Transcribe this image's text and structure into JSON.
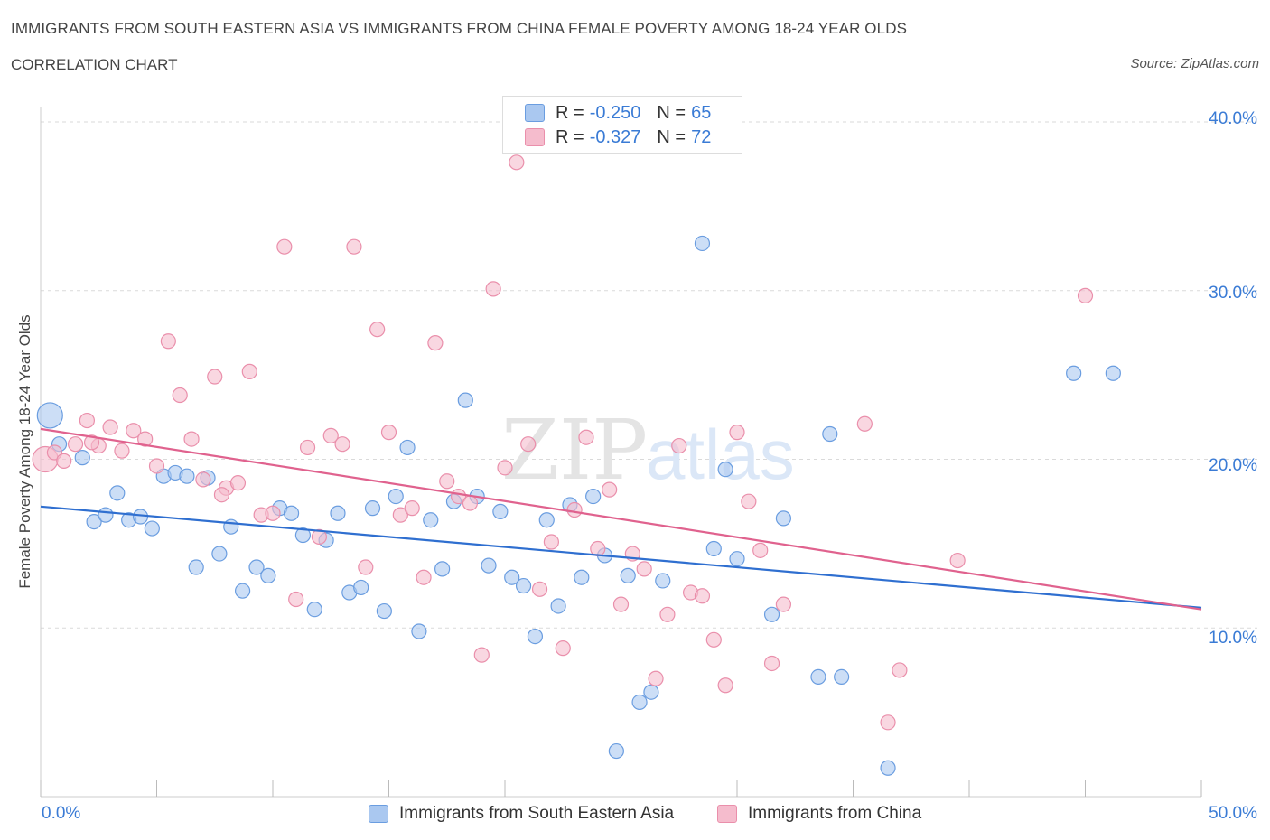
{
  "header": {
    "title": "IMMIGRANTS FROM SOUTH EASTERN ASIA VS IMMIGRANTS FROM CHINA FEMALE POVERTY AMONG 18-24 YEAR OLDS",
    "subtitle": "CORRELATION CHART",
    "source": "Source: ZipAtlas.com"
  },
  "watermark": {
    "part1": "ZIP",
    "part2": "atlas"
  },
  "stats": {
    "row1": {
      "r_label": "R =",
      "r_value": "-0.250",
      "n_label": "N =",
      "n_value": "65"
    },
    "row2": {
      "r_label": "R =",
      "r_value": "-0.327",
      "n_label": "N =",
      "n_value": "72"
    }
  },
  "legend": {
    "item1": "Immigrants from South Eastern Asia",
    "item2": "Immigrants from China"
  },
  "axis_labels": {
    "y": "Female Poverty Among 18-24 Year Olds",
    "x_min": "0.0%",
    "x_max": "50.0%",
    "y_ticks": [
      "40.0%",
      "30.0%",
      "20.0%",
      "10.0%"
    ]
  },
  "colors": {
    "blue_fill": "#aac8f0",
    "blue_stroke": "#6a9de0",
    "blue_line": "#2f6fd0",
    "pink_fill": "#f5bccd",
    "pink_stroke": "#ea8fab",
    "pink_line": "#e0628e",
    "tick_text": "#3a7bd5"
  },
  "chart_data": {
    "type": "scatter",
    "xlabel": "",
    "ylabel": "Female Poverty Among 18-24 Year Olds",
    "xlim": [
      0,
      50
    ],
    "ylim": [
      0,
      40
    ],
    "y_ticks": [
      10,
      20,
      30,
      40
    ],
    "grid": "horizontal dashed",
    "legend_placement": "bottom",
    "series": [
      {
        "name": "Immigrants from South Eastern Asia",
        "color": "#6a9de0",
        "trend": {
          "x": [
            0,
            50
          ],
          "y": [
            17.2,
            11.2
          ]
        },
        "points": [
          [
            0.4,
            22.6
          ],
          [
            0.8,
            20.9
          ],
          [
            1.8,
            20.1
          ],
          [
            2.3,
            16.3
          ],
          [
            2.8,
            16.7
          ],
          [
            3.3,
            18.0
          ],
          [
            3.8,
            16.4
          ],
          [
            4.3,
            16.6
          ],
          [
            4.8,
            15.9
          ],
          [
            5.3,
            19.0
          ],
          [
            5.8,
            19.2
          ],
          [
            6.3,
            19.0
          ],
          [
            6.7,
            13.6
          ],
          [
            7.2,
            18.9
          ],
          [
            7.7,
            14.4
          ],
          [
            8.2,
            16.0
          ],
          [
            8.7,
            12.2
          ],
          [
            9.3,
            13.6
          ],
          [
            9.8,
            13.1
          ],
          [
            10.3,
            17.1
          ],
          [
            10.8,
            16.8
          ],
          [
            11.3,
            15.5
          ],
          [
            11.8,
            11.1
          ],
          [
            12.3,
            15.2
          ],
          [
            12.8,
            16.8
          ],
          [
            13.3,
            12.1
          ],
          [
            13.8,
            12.4
          ],
          [
            14.3,
            17.1
          ],
          [
            14.8,
            11.0
          ],
          [
            15.3,
            17.8
          ],
          [
            15.8,
            20.7
          ],
          [
            16.3,
            9.8
          ],
          [
            16.8,
            16.4
          ],
          [
            17.3,
            13.5
          ],
          [
            17.8,
            17.5
          ],
          [
            18.3,
            23.5
          ],
          [
            18.8,
            17.8
          ],
          [
            19.3,
            13.7
          ],
          [
            19.8,
            16.9
          ],
          [
            20.3,
            13.0
          ],
          [
            20.8,
            12.5
          ],
          [
            21.3,
            9.5
          ],
          [
            21.8,
            16.4
          ],
          [
            22.3,
            11.3
          ],
          [
            22.8,
            17.3
          ],
          [
            23.3,
            13.0
          ],
          [
            23.8,
            17.8
          ],
          [
            24.3,
            14.3
          ],
          [
            24.8,
            2.7
          ],
          [
            25.3,
            13.1
          ],
          [
            25.8,
            5.6
          ],
          [
            26.3,
            6.2
          ],
          [
            26.8,
            12.8
          ],
          [
            28.5,
            32.8
          ],
          [
            29.0,
            14.7
          ],
          [
            29.5,
            19.4
          ],
          [
            30.0,
            14.1
          ],
          [
            31.5,
            10.8
          ],
          [
            32.0,
            16.5
          ],
          [
            33.5,
            7.1
          ],
          [
            34.0,
            21.5
          ],
          [
            34.5,
            7.1
          ],
          [
            36.5,
            1.7
          ],
          [
            44.5,
            25.1
          ],
          [
            46.2,
            25.1
          ]
        ]
      },
      {
        "name": "Immigrants from China",
        "color": "#ea8fab",
        "trend": {
          "x": [
            0,
            50
          ],
          "y": [
            21.8,
            11.1
          ]
        },
        "points": [
          [
            0.2,
            20.0
          ],
          [
            0.6,
            20.4
          ],
          [
            1.0,
            19.9
          ],
          [
            1.5,
            20.9
          ],
          [
            2.0,
            22.3
          ],
          [
            2.5,
            20.8
          ],
          [
            3.0,
            21.9
          ],
          [
            3.5,
            20.5
          ],
          [
            4.0,
            21.7
          ],
          [
            4.5,
            21.2
          ],
          [
            5.0,
            19.6
          ],
          [
            5.5,
            27.0
          ],
          [
            6.0,
            23.8
          ],
          [
            6.5,
            21.2
          ],
          [
            7.0,
            18.8
          ],
          [
            7.5,
            24.9
          ],
          [
            8.0,
            18.3
          ],
          [
            8.5,
            18.6
          ],
          [
            9.0,
            25.2
          ],
          [
            9.5,
            16.7
          ],
          [
            10.0,
            16.8
          ],
          [
            10.5,
            32.6
          ],
          [
            11.0,
            11.7
          ],
          [
            11.5,
            20.7
          ],
          [
            12.0,
            15.4
          ],
          [
            12.5,
            21.4
          ],
          [
            13.0,
            20.9
          ],
          [
            13.5,
            32.6
          ],
          [
            14.0,
            13.6
          ],
          [
            14.5,
            27.7
          ],
          [
            15.0,
            21.6
          ],
          [
            15.5,
            16.7
          ],
          [
            16.0,
            17.1
          ],
          [
            16.5,
            13.0
          ],
          [
            17.0,
            26.9
          ],
          [
            17.5,
            18.7
          ],
          [
            18.0,
            17.8
          ],
          [
            18.5,
            17.4
          ],
          [
            19.0,
            8.4
          ],
          [
            19.5,
            30.1
          ],
          [
            20.0,
            19.5
          ],
          [
            20.5,
            37.6
          ],
          [
            21.0,
            20.9
          ],
          [
            21.5,
            12.3
          ],
          [
            22.0,
            15.1
          ],
          [
            22.5,
            8.8
          ],
          [
            23.0,
            17.0
          ],
          [
            23.5,
            21.3
          ],
          [
            24.0,
            14.7
          ],
          [
            24.5,
            18.2
          ],
          [
            25.0,
            11.4
          ],
          [
            25.5,
            14.4
          ],
          [
            26.0,
            13.5
          ],
          [
            26.5,
            7.0
          ],
          [
            27.0,
            10.8
          ],
          [
            27.5,
            20.8
          ],
          [
            28.0,
            12.1
          ],
          [
            28.5,
            11.9
          ],
          [
            29.0,
            9.3
          ],
          [
            29.5,
            6.6
          ],
          [
            30.0,
            21.6
          ],
          [
            30.5,
            17.5
          ],
          [
            31.0,
            14.6
          ],
          [
            31.5,
            7.9
          ],
          [
            32.0,
            11.4
          ],
          [
            35.5,
            22.1
          ],
          [
            36.5,
            4.4
          ],
          [
            37.0,
            7.5
          ],
          [
            39.5,
            14.0
          ],
          [
            45.0,
            29.7
          ],
          [
            2.2,
            21.0
          ],
          [
            7.8,
            17.9
          ]
        ]
      }
    ]
  }
}
